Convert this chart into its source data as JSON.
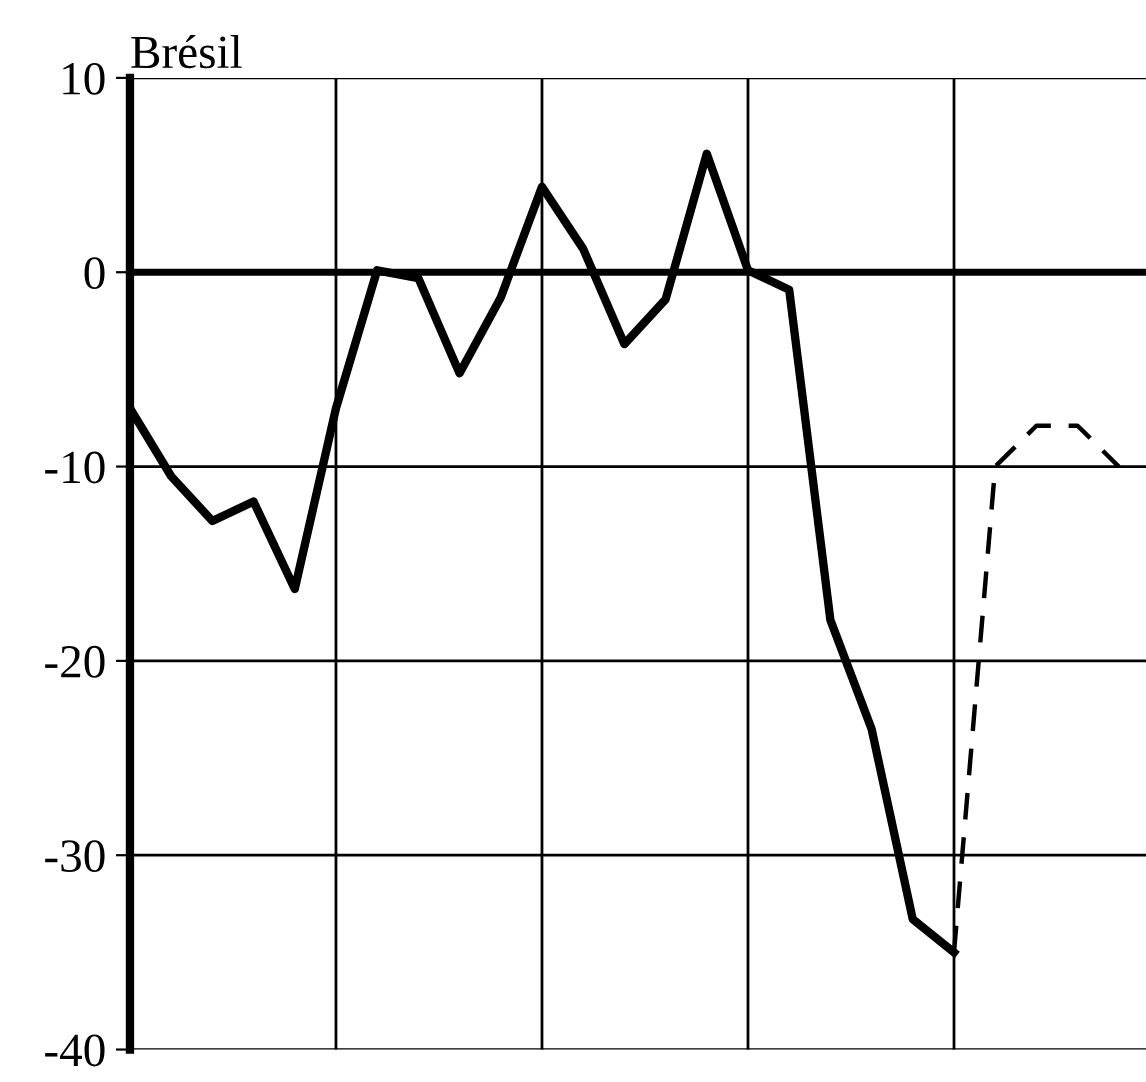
{
  "chart_data": {
    "type": "line",
    "title": "Brésil",
    "categories": [
      null,
      null,
      null,
      null,
      null,
      null,
      null,
      null,
      null,
      null,
      null,
      null,
      null,
      null,
      null,
      null,
      null,
      null,
      null,
      null,
      null,
      null,
      null,
      null,
      null
    ],
    "series": [
      {
        "color": "#000000",
        "line_style": "solid",
        "values": [
          -7,
          -10.5,
          -12.8,
          -11.8,
          -16.3,
          -7,
          0.1,
          -0.3,
          -5.2,
          -1.3,
          4.4,
          1.2,
          -3.7,
          -1.4,
          6.1,
          0.1,
          -0.9,
          -17.9,
          -23.5,
          -33.3,
          -35,
          null,
          null,
          null,
          null
        ]
      },
      {
        "color": "#000000",
        "line_style": "dashed",
        "values": [
          null,
          null,
          null,
          null,
          null,
          null,
          null,
          null,
          null,
          null,
          null,
          null,
          null,
          null,
          null,
          null,
          null,
          null,
          null,
          null,
          -35,
          -10,
          -7.9,
          -7.9,
          -10
        ]
      }
    ],
    "ylim": [
      -40,
      10
    ],
    "yticks": [
      -40,
      -30,
      -20,
      -10,
      0,
      10
    ],
    "tick_labels": "y",
    "grid": true,
    "legend": false,
    "marker": "none"
  }
}
